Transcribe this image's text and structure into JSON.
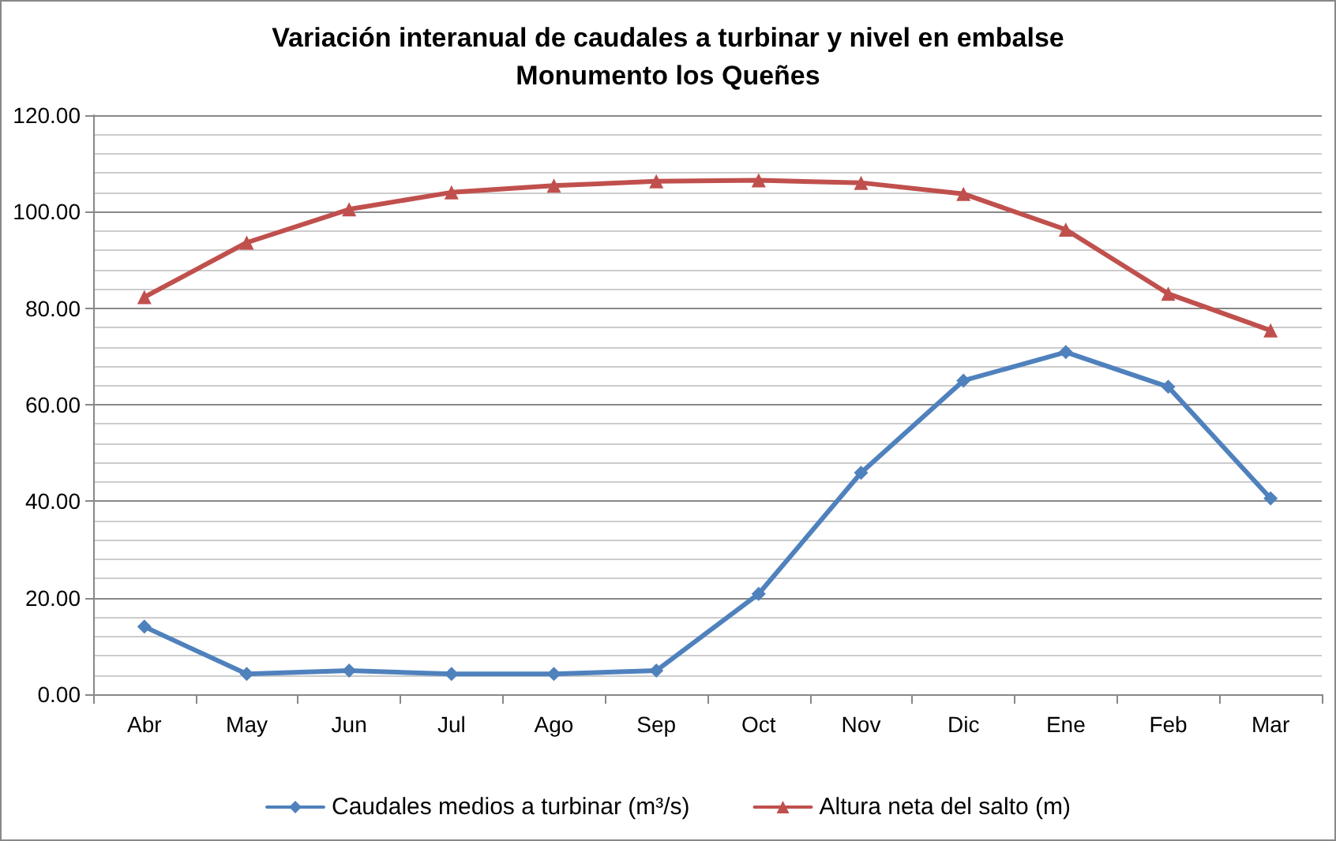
{
  "chart_data": {
    "type": "line",
    "title": "Variación interanual de caudales a turbinar y nivel en embalse\nMonumento los Queñes",
    "categories": [
      "Abr",
      "May",
      "Jun",
      "Jul",
      "Ago",
      "Sep",
      "Oct",
      "Nov",
      "Dic",
      "Ene",
      "Feb",
      "Mar"
    ],
    "series": [
      {
        "name": "Caudales medios a turbinar (m³/s)",
        "color": "#4f81bd",
        "marker": "diamond",
        "values": [
          14,
          4.2,
          4.9,
          4.2,
          4.2,
          4.9,
          20.8,
          45.9,
          65,
          70.9,
          63.7,
          40.6
        ]
      },
      {
        "name": "Altura neta del salto (m)",
        "color": "#c0504d",
        "marker": "triangle",
        "values": [
          82.3,
          93.6,
          100.5,
          104,
          105.4,
          106.3,
          106.5,
          106,
          103.7,
          96.3,
          83,
          75.4
        ]
      }
    ],
    "ylim": [
      0,
      120
    ],
    "yticks": [
      {
        "value": 0,
        "label": "0.00"
      },
      {
        "value": 20,
        "label": "20.00"
      },
      {
        "value": 40,
        "label": "40.00"
      },
      {
        "value": 60,
        "label": "60.00"
      },
      {
        "value": 80,
        "label": "80.00"
      },
      {
        "value": 100,
        "label": "100.00"
      },
      {
        "value": 120,
        "label": "120.00"
      }
    ],
    "grid": "y",
    "legend": "bottom",
    "line_style": "solid"
  }
}
